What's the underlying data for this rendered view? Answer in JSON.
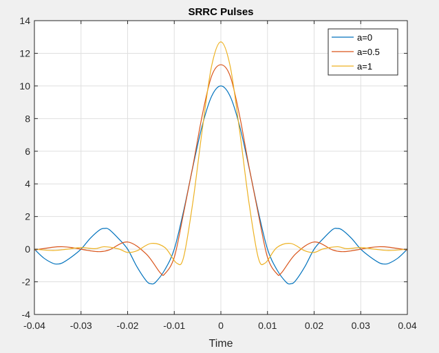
{
  "chart_data": {
    "type": "line",
    "title": "SRRC Pulses",
    "xlabel": "Time",
    "ylabel": "",
    "xlim": [
      -0.04,
      0.04
    ],
    "ylim": [
      -4,
      14
    ],
    "xticks": [
      -0.04,
      -0.03,
      -0.02,
      -0.01,
      0,
      0.01,
      0.02,
      0.03,
      0.04
    ],
    "xtick_labels": [
      "-0.04",
      "-0.03",
      "-0.02",
      "-0.01",
      "0",
      "0.01",
      "0.02",
      "0.03",
      "0.04"
    ],
    "yticks": [
      -4,
      -2,
      0,
      2,
      4,
      6,
      8,
      10,
      12,
      14
    ],
    "ytick_labels": [
      "-4",
      "-2",
      "0",
      "2",
      "4",
      "6",
      "8",
      "10",
      "12",
      "14"
    ],
    "grid": true,
    "legend_position": "top-right",
    "series": [
      {
        "name": "a=0",
        "color": "#0072BD",
        "x": [
          -0.04,
          -0.038,
          -0.036,
          -0.035,
          -0.034,
          -0.032,
          -0.03,
          -0.028,
          -0.026,
          -0.025,
          -0.024,
          -0.022,
          -0.02,
          -0.018,
          -0.016,
          -0.015,
          -0.014,
          -0.012,
          -0.01,
          -0.008,
          -0.006,
          -0.004,
          -0.002,
          0,
          0.002,
          0.004,
          0.006,
          0.008,
          0.01,
          0.012,
          0.014,
          0.015,
          0.016,
          0.018,
          0.02,
          0.022,
          0.024,
          0.025,
          0.026,
          0.028,
          0.03,
          0.032,
          0.034,
          0.035,
          0.036,
          0.038,
          0.04
        ],
        "y": [
          0,
          -0.54,
          -0.87,
          -0.91,
          -0.84,
          -0.47,
          0,
          0.67,
          1.18,
          1.27,
          1.21,
          0.66,
          0,
          -1.08,
          -1.94,
          -2.12,
          -2.02,
          -1.25,
          0,
          2.34,
          5.05,
          7.57,
          9.36,
          10.0,
          9.36,
          7.57,
          5.05,
          2.34,
          0,
          -1.25,
          -2.02,
          -2.12,
          -1.94,
          -1.08,
          0,
          0.66,
          1.21,
          1.27,
          1.18,
          0.67,
          0,
          -0.47,
          -0.84,
          -0.91,
          -0.87,
          -0.54,
          0
        ]
      },
      {
        "name": "a=0.5",
        "color": "#D95319",
        "x": [
          -0.04,
          -0.036,
          -0.034,
          -0.032,
          -0.028,
          -0.026,
          -0.024,
          -0.02,
          -0.016,
          -0.013,
          -0.012,
          -0.01,
          -0.008,
          -0.006,
          -0.004,
          -0.002,
          0,
          0.002,
          0.004,
          0.006,
          0.008,
          0.01,
          0.012,
          0.013,
          0.016,
          0.02,
          0.024,
          0.026,
          0.028,
          0.032,
          0.034,
          0.036,
          0.04
        ],
        "y": [
          -0.05,
          0.12,
          0.15,
          0.1,
          -0.1,
          -0.15,
          -0.05,
          0.44,
          -0.3,
          -1.45,
          -1.5,
          -0.5,
          2.2,
          5.1,
          8.2,
          10.6,
          11.3,
          10.6,
          8.2,
          5.1,
          2.2,
          -0.5,
          -1.5,
          -1.45,
          -0.3,
          0.44,
          -0.05,
          -0.15,
          -0.1,
          0.1,
          0.15,
          0.12,
          -0.05
        ]
      },
      {
        "name": "a=1",
        "color": "#EDB120",
        "x": [
          -0.04,
          -0.036,
          -0.033,
          -0.03,
          -0.027,
          -0.025,
          -0.022,
          -0.02,
          -0.018,
          -0.015,
          -0.012,
          -0.0095,
          -0.008,
          -0.006,
          -0.004,
          -0.002,
          0,
          0.002,
          0.004,
          0.006,
          0.008,
          0.0095,
          0.012,
          0.015,
          0.018,
          0.02,
          0.022,
          0.025,
          0.027,
          0.03,
          0.033,
          0.036,
          0.04
        ],
        "y": [
          0,
          -0.08,
          0,
          0.1,
          0.03,
          0.15,
          0.02,
          -0.2,
          -0.1,
          0.35,
          0.1,
          -0.85,
          -0.5,
          2.9,
          7.3,
          11.2,
          12.7,
          11.2,
          7.3,
          2.9,
          -0.5,
          -0.85,
          0.1,
          0.35,
          -0.1,
          -0.2,
          0.02,
          0.15,
          0.03,
          0.1,
          0,
          -0.08,
          0
        ]
      }
    ]
  }
}
